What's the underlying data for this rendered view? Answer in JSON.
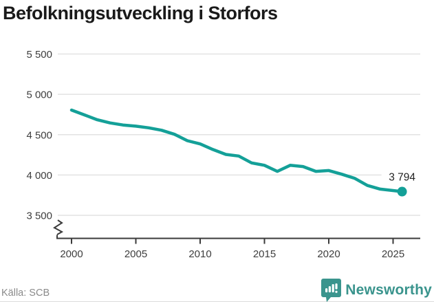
{
  "header": {
    "title": "Befolkningsutveckling i Storfors"
  },
  "footer": {
    "source": "Källa: SCB",
    "brand": "Newsworthy"
  },
  "colors": {
    "line": "#14A098",
    "logo_teal": "#3A948D",
    "grid": "#e2e2e2",
    "axis": "#3a3a3a",
    "axis_text": "#3d3d3d",
    "title_text": "#1a1a1a",
    "end_label_text": "#222222"
  },
  "chart_data": {
    "type": "line",
    "title": "Befolkningsutveckling i Storfors",
    "source": "Källa: SCB",
    "xlabel": "",
    "ylabel": "",
    "grid": "horizontal only",
    "axis_break": true,
    "legend": "none",
    "x": [
      2000,
      2001,
      2002,
      2003,
      2004,
      2005,
      2006,
      2007,
      2008,
      2009,
      2010,
      2011,
      2012,
      2013,
      2014,
      2015,
      2016,
      2017,
      2018,
      2019,
      2020,
      2021,
      2022,
      2023,
      2024,
      2025.7
    ],
    "values": [
      4805,
      4745,
      4685,
      4645,
      4620,
      4605,
      4585,
      4555,
      4505,
      4425,
      4385,
      4315,
      4255,
      4235,
      4150,
      4120,
      4045,
      4120,
      4105,
      4045,
      4055,
      4010,
      3960,
      3870,
      3825,
      3794
    ],
    "x_ticks": [
      2000,
      2005,
      2010,
      2015,
      2020,
      2025
    ],
    "x_tick_labels": [
      "2000",
      "2005",
      "2010",
      "2015",
      "2020",
      "2025"
    ],
    "y_tick_values": [
      5500,
      5000,
      4500,
      4000,
      3500
    ],
    "y_tick_labels": [
      "5 500",
      "5 000",
      "4 500",
      "4 000",
      "3 500"
    ],
    "ylim": [
      3400,
      5600
    ],
    "end_label": "3 794",
    "end_value": 3794,
    "line_color": "#14A098"
  }
}
